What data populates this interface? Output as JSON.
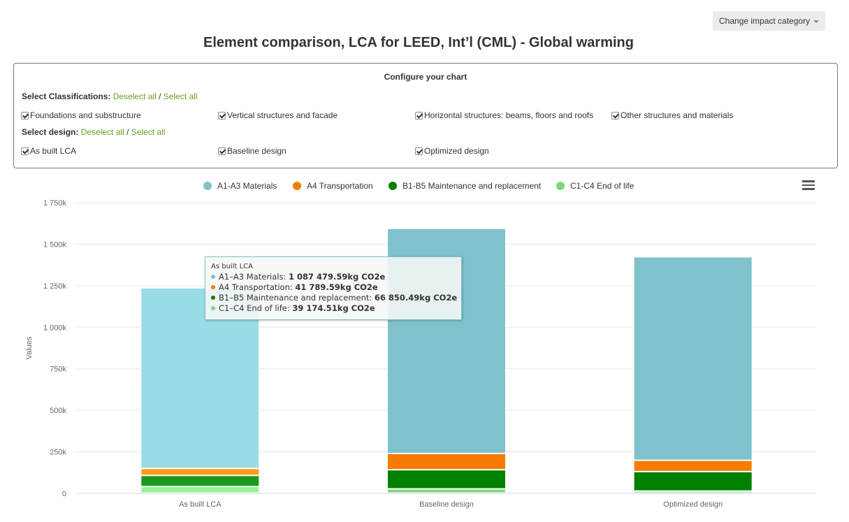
{
  "toolbar": {
    "change_impact_label": "Change impact category"
  },
  "page_title": "Element comparison, LCA for LEED, Int’l (CML) - Global warming",
  "config": {
    "title": "Configure your chart",
    "classifications": {
      "label": "Select Classifications:",
      "deselect_all": "Deselect all",
      "separator": "/",
      "select_all": "Select all",
      "items": [
        {
          "label": "Foundations and substructure",
          "checked": true
        },
        {
          "label": "Vertical structures and facade",
          "checked": true
        },
        {
          "label": "Horizontal structures: beams, floors and roofs",
          "checked": true
        },
        {
          "label": "Other structures and materials",
          "checked": true
        }
      ]
    },
    "design": {
      "label": "Select design:",
      "deselect_all": "Deselect all",
      "separator": "/",
      "select_all": "Select all",
      "items": [
        {
          "label": "As built LCA",
          "checked": true
        },
        {
          "label": "Baseline design",
          "checked": true
        },
        {
          "label": "Optimized design",
          "checked": true
        }
      ]
    }
  },
  "legend": [
    {
      "name": "A1-A3 Materials",
      "color": "#7fc2cb"
    },
    {
      "name": "A4 Transportation",
      "color": "#f57c00"
    },
    {
      "name": "B1-B5 Maintenance and replacement",
      "color": "#007f00"
    },
    {
      "name": "C1-C4 End of life",
      "color": "#7ad97a"
    }
  ],
  "chart_data": {
    "type": "bar",
    "stacked": true,
    "ylabel": "Values",
    "ylim": [
      0,
      1750000
    ],
    "yticks": [
      "0",
      "250k",
      "500k",
      "750k",
      "1 000k",
      "1 250k",
      "1 500k",
      "1 750k"
    ],
    "ytick_values": [
      0,
      250000,
      500000,
      750000,
      1000000,
      1250000,
      1500000,
      1750000
    ],
    "categories": [
      "As built LCA",
      "Baseline design",
      "Optimized design"
    ],
    "series": [
      {
        "name": "C1-C4 End of life",
        "color": "#7ad97a",
        "values": [
          39174.51,
          25000,
          12000
        ]
      },
      {
        "name": "B1-B5 Maintenance and replacement",
        "color": "#007f00",
        "values": [
          66850.49,
          115000,
          117000
        ]
      },
      {
        "name": "A4 Transportation",
        "color": "#f57c00",
        "values": [
          41789.59,
          98000,
          68000
        ]
      },
      {
        "name": "A1-A3 Materials",
        "color": "#7fc2cb",
        "values": [
          1087479.59,
          1355000,
          1225000
        ]
      }
    ],
    "hovered_category": 0,
    "hover_colors": {
      "A1-A3 Materials": "#99dce5",
      "A4 Transportation": "#ff9a1a",
      "B1-B5 Maintenance and replacement": "#1a991a",
      "C1-C4 End of life": "#94f394"
    },
    "grid": true
  },
  "tooltip": {
    "title": "As built LCA",
    "rows": [
      {
        "label": "A1–A3 Materials:",
        "value": "1 087 479.59kg CO2e",
        "color": "#7fc2cb"
      },
      {
        "label": "A4 Transportation:",
        "value": "41 789.59kg CO2e",
        "color": "#f57c00"
      },
      {
        "label": "B1–B5 Maintenance and replacement:",
        "value": "66 850.49kg CO2e",
        "color": "#007f00"
      },
      {
        "label": "C1–C4 End of life:",
        "value": "39 174.51kg CO2e",
        "color": "#7ad97a"
      }
    ]
  }
}
